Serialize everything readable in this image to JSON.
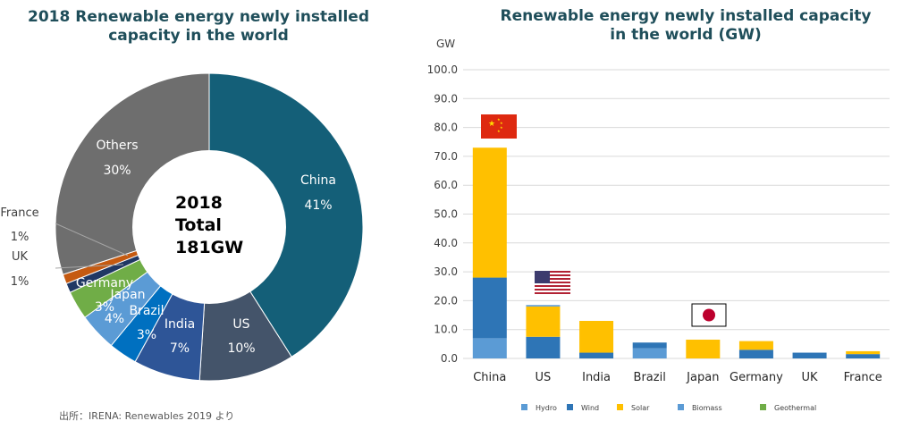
{
  "chart_data": [
    {
      "type": "pie",
      "title_lines": [
        "2018 Renewable energy newly installed",
        "capacity in the world"
      ],
      "center_lines": [
        "2018",
        "Total",
        "181GW"
      ],
      "slices": [
        {
          "label": "China",
          "pct_text": "41%",
          "value": 41,
          "color": "#145f78"
        },
        {
          "label": "US",
          "pct_text": "10%",
          "value": 10,
          "color": "#44546a"
        },
        {
          "label": "India",
          "pct_text": "7%",
          "value": 7,
          "color": "#2e5597"
        },
        {
          "label": "Brazil",
          "pct_text": "3%",
          "value": 3,
          "color": "#0070c0"
        },
        {
          "label": "Japan",
          "pct_text": "4%",
          "value": 4,
          "color": "#5b9bd5"
        },
        {
          "label": "Germany",
          "pct_text": "3%",
          "value": 3,
          "color": "#70ad47"
        },
        {
          "label": "UK",
          "pct_text": "1%",
          "value": 1,
          "color": "#203864"
        },
        {
          "label": "France",
          "pct_text": "1%",
          "value": 1,
          "color": "#c55a11"
        },
        {
          "label": "Others",
          "pct_text": "30%",
          "value": 30,
          "color": "#6e6e6e"
        }
      ]
    },
    {
      "type": "bar",
      "stacked": true,
      "title_lines": [
        "Renewable energy newly installed capacity",
        "in the world (GW)"
      ],
      "ylabel": "GW",
      "ylim": [
        0,
        100
      ],
      "yticks": [
        "0.0",
        "10.0",
        "20.0",
        "30.0",
        "40.0",
        "50.0",
        "60.0",
        "70.0",
        "80.0",
        "90.0",
        "100.0"
      ],
      "grid": true,
      "legend_position": "bottom",
      "categories": [
        "China",
        "US",
        "India",
        "Brazil",
        "Japan",
        "Germany",
        "UK",
        "France"
      ],
      "series": [
        {
          "name": "Hydro",
          "color": "#5b9bd5",
          "values": [
            7,
            0,
            0,
            3.5,
            0,
            0,
            0,
            0
          ]
        },
        {
          "name": "Wind",
          "color": "#2e75b6",
          "values": [
            21,
            7.5,
            2,
            2,
            0,
            3,
            2,
            1.5
          ]
        },
        {
          "name": "Solar",
          "color": "#ffc000",
          "values": [
            45,
            10.5,
            11,
            0,
            6.5,
            3,
            0,
            1
          ]
        },
        {
          "name": "Biomass",
          "color": "#5b9bd5",
          "values": [
            0,
            0.5,
            0,
            0,
            0,
            0,
            0,
            0
          ]
        },
        {
          "name": "Geothermal",
          "color": "#70ad47",
          "values": [
            0,
            0,
            0,
            0,
            0,
            0,
            0,
            0
          ]
        }
      ],
      "flags": [
        {
          "country": "China",
          "icon": "china-flag-icon"
        },
        {
          "country": "US",
          "icon": "us-flag-icon"
        },
        {
          "country": "Japan",
          "icon": "japan-flag-icon"
        }
      ]
    }
  ],
  "source": "出所：IRENA: Renewables 2019 より"
}
